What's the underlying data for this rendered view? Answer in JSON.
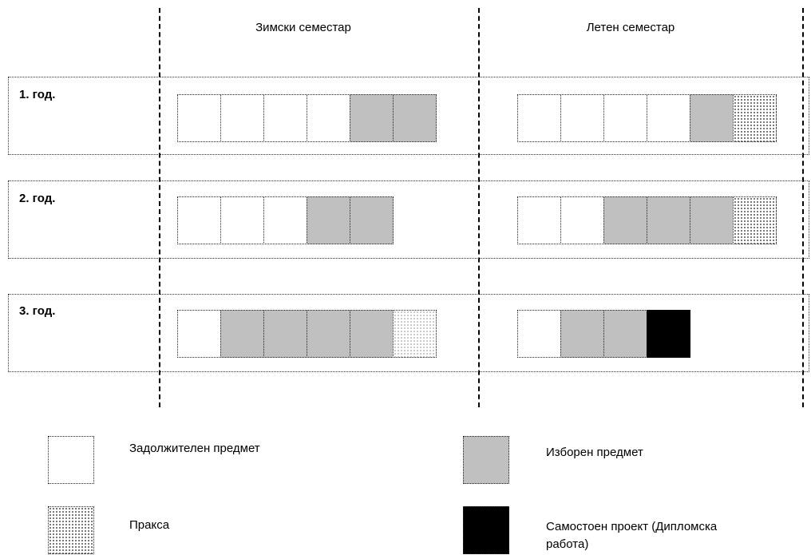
{
  "semesters": {
    "winter": "Зимски семестар",
    "summer": "Летен семестар"
  },
  "rows": [
    {
      "label": "1. год.",
      "winter": [
        "mandatory",
        "mandatory",
        "mandatory",
        "mandatory",
        "elective",
        "elective"
      ],
      "summer": [
        "mandatory",
        "mandatory",
        "mandatory",
        "mandatory",
        "elective",
        "practice"
      ]
    },
    {
      "label": "2. год.",
      "winter": [
        "mandatory",
        "mandatory",
        "mandatory",
        "elective",
        "elective"
      ],
      "summer": [
        "mandatory",
        "mandatory",
        "elective",
        "elective",
        "elective",
        "practice"
      ]
    },
    {
      "label": "3. год.",
      "winter": [
        "mandatory",
        "elective",
        "elective",
        "elective",
        "elective",
        "practice-light"
      ],
      "summer": [
        "mandatory",
        "elective",
        "elective",
        "project"
      ]
    }
  ],
  "legend": {
    "mandatory": "Задолжителен предмет",
    "elective": "Изборен предмет",
    "practice": "Пракса",
    "project_line1": "Самостоен проект (Дипломска",
    "project_line2": "работа)"
  },
  "colors": {
    "mandatory": "#ffffff",
    "elective": "#c0c0c0",
    "project": "#000000"
  }
}
